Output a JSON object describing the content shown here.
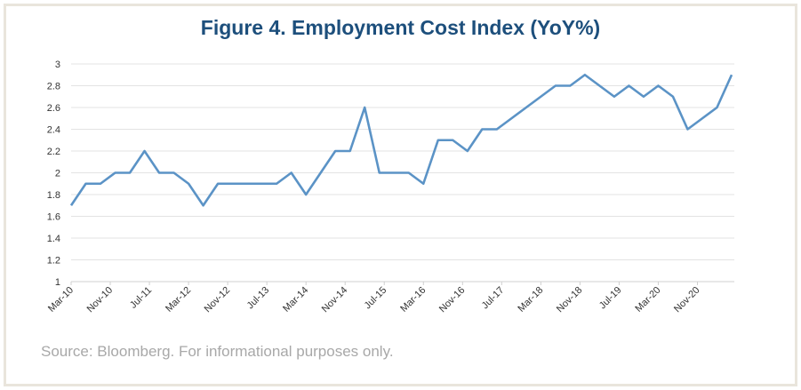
{
  "chart_data": {
    "type": "line",
    "title": "Figure 4. Employment Cost Index (YoY%)",
    "source": "Source: Bloomberg. For informational purposes only.",
    "xlabel": "",
    "ylabel": "",
    "ylim": [
      1,
      3
    ],
    "yticks": [
      "1",
      "1.2",
      "1.4",
      "1.6",
      "1.8",
      "2",
      "2.2",
      "2.4",
      "2.6",
      "2.8",
      "3"
    ],
    "xtick_labels": [
      "Mar-10",
      "Nov-10",
      "Jul-11",
      "Mar-12",
      "Nov-12",
      "Jul-13",
      "Mar-14",
      "Nov-14",
      "Jul-15",
      "Mar-16",
      "Nov-16",
      "Jul-17",
      "Mar-18",
      "Nov-18",
      "Jul-19",
      "Mar-20",
      "Nov-20"
    ],
    "grid": true,
    "line_color": "#5b93c6",
    "series": [
      {
        "x": [
          "Mar-10",
          "Jun-10",
          "Sep-10",
          "Dec-10",
          "Mar-11",
          "Jun-11",
          "Sep-11",
          "Dec-11",
          "Mar-12",
          "Jun-12",
          "Sep-12",
          "Dec-12",
          "Mar-13",
          "Jun-13",
          "Sep-13",
          "Dec-13",
          "Mar-14",
          "Jun-14",
          "Sep-14",
          "Dec-14",
          "Mar-15",
          "Jun-15",
          "Sep-15",
          "Dec-15",
          "Mar-16",
          "Jun-16",
          "Sep-16",
          "Dec-16",
          "Mar-17",
          "Jun-17",
          "Sep-17",
          "Dec-17",
          "Mar-18",
          "Jun-18",
          "Sep-18",
          "Dec-18",
          "Mar-19",
          "Jun-19",
          "Sep-19",
          "Dec-19",
          "Mar-20",
          "Jun-20",
          "Sep-20",
          "Dec-20",
          "Mar-21",
          "Jun-21"
        ],
        "values": [
          1.7,
          1.9,
          1.9,
          2.0,
          2.0,
          2.2,
          2.0,
          2.0,
          1.9,
          1.7,
          1.9,
          1.9,
          1.9,
          1.9,
          1.9,
          2.0,
          1.8,
          2.0,
          2.2,
          2.2,
          2.6,
          2.0,
          2.0,
          2.0,
          1.9,
          2.3,
          2.3,
          2.2,
          2.4,
          2.4,
          2.5,
          2.6,
          2.7,
          2.8,
          2.8,
          2.9,
          2.8,
          2.7,
          2.8,
          2.7,
          2.8,
          2.7,
          2.4,
          2.5,
          2.6,
          2.9
        ]
      }
    ]
  }
}
